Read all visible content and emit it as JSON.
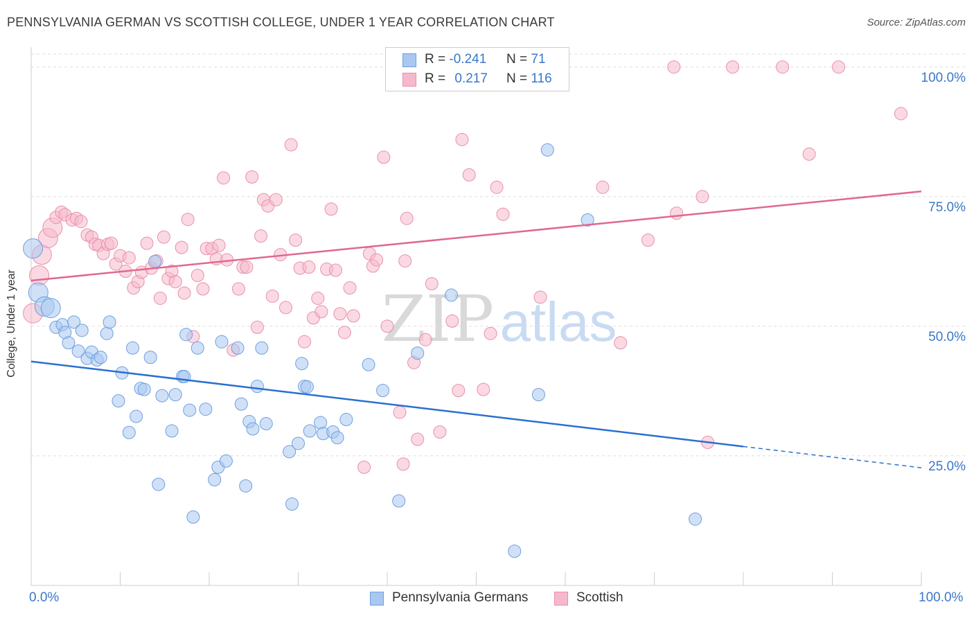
{
  "title": "PENNSYLVANIA GERMAN VS SCOTTISH COLLEGE, UNDER 1 YEAR CORRELATION CHART",
  "source": "Source: ZipAtlas.com",
  "watermark": {
    "zip": "ZIP",
    "atlas": "atlas"
  },
  "legend_top": {
    "rows": [
      {
        "r_label": "R =",
        "r_value": "-0.241",
        "n_label": "N =",
        "n_value": "71"
      },
      {
        "r_label": "R =",
        "r_value": "0.217",
        "n_label": "N =",
        "n_value": "116"
      }
    ]
  },
  "legend_bottom": {
    "items": [
      "Pennsylvania Germans",
      "Scottish"
    ]
  },
  "colors": {
    "blue_fill": "#a9c8f0",
    "blue_stroke": "#6d9fe0",
    "blue_line": "#2a6fd1",
    "pink_fill": "#f5b9cb",
    "pink_stroke": "#ea8fac",
    "pink_line": "#e0688f",
    "tick_label": "#3a77c9",
    "grid": "#dddddd"
  },
  "chart_data": {
    "type": "scatter",
    "title": "PENNSYLVANIA GERMAN VS SCOTTISH COLLEGE, UNDER 1 YEAR CORRELATION CHART",
    "xlabel": "",
    "ylabel": "College, Under 1 year",
    "xlim": [
      0,
      100
    ],
    "ylim": [
      0,
      105
    ],
    "x_tick_labels": [
      "0.0%",
      "100.0%"
    ],
    "y_tick_labels": [
      "25.0%",
      "50.0%",
      "75.0%",
      "100.0%"
    ],
    "y_ticks": [
      25,
      50,
      75,
      100
    ],
    "grid": true,
    "legend_position": "top-center",
    "series": [
      {
        "name": "Pennsylvania Germans",
        "color": "#a9c8f0",
        "r": -0.241,
        "n": 71,
        "trend": {
          "x0": 0,
          "y0": 43.2,
          "x1": 80,
          "y1": 26.8,
          "dashed_to_x": 100,
          "dashed_to_y": 22.7
        },
        "points": [
          [
            0.2,
            65.0
          ],
          [
            0.8,
            56.5
          ],
          [
            1.5,
            53.8
          ],
          [
            2.2,
            53.5
          ],
          [
            2.8,
            49.8
          ],
          [
            3.5,
            50.3
          ],
          [
            3.8,
            48.8
          ],
          [
            4.2,
            46.8
          ],
          [
            4.8,
            50.8
          ],
          [
            5.3,
            45.2
          ],
          [
            5.7,
            49.2
          ],
          [
            6.3,
            43.8
          ],
          [
            6.8,
            45.0
          ],
          [
            7.4,
            43.5
          ],
          [
            7.8,
            44.0
          ],
          [
            8.5,
            48.6
          ],
          [
            8.8,
            50.8
          ],
          [
            9.8,
            35.6
          ],
          [
            10.2,
            41.0
          ],
          [
            11.0,
            29.5
          ],
          [
            11.4,
            45.8
          ],
          [
            11.8,
            32.6
          ],
          [
            12.3,
            38.0
          ],
          [
            12.7,
            37.8
          ],
          [
            13.4,
            44.0
          ],
          [
            13.9,
            62.5
          ],
          [
            14.3,
            19.5
          ],
          [
            14.7,
            36.6
          ],
          [
            15.8,
            29.8
          ],
          [
            16.2,
            36.8
          ],
          [
            17.0,
            40.3
          ],
          [
            17.4,
            48.4
          ],
          [
            17.8,
            33.8
          ],
          [
            18.2,
            13.2
          ],
          [
            18.7,
            45.8
          ],
          [
            19.6,
            34.0
          ],
          [
            20.6,
            20.4
          ],
          [
            21.0,
            22.8
          ],
          [
            21.4,
            47.0
          ],
          [
            21.9,
            24.0
          ],
          [
            23.2,
            45.8
          ],
          [
            23.6,
            35.0
          ],
          [
            24.1,
            19.2
          ],
          [
            24.5,
            31.6
          ],
          [
            24.9,
            30.2
          ],
          [
            25.4,
            38.4
          ],
          [
            25.9,
            45.8
          ],
          [
            26.4,
            31.2
          ],
          [
            29.0,
            25.8
          ],
          [
            29.3,
            15.7
          ],
          [
            30.0,
            27.4
          ],
          [
            30.4,
            42.8
          ],
          [
            30.7,
            38.4
          ],
          [
            31.3,
            29.8
          ],
          [
            32.5,
            31.4
          ],
          [
            32.8,
            29.3
          ],
          [
            33.9,
            29.6
          ],
          [
            34.4,
            28.5
          ],
          [
            35.4,
            32.0
          ],
          [
            37.9,
            42.6
          ],
          [
            39.5,
            37.6
          ],
          [
            41.3,
            16.3
          ],
          [
            43.4,
            44.8
          ],
          [
            47.2,
            56.0
          ],
          [
            54.3,
            6.6
          ],
          [
            57.0,
            36.8
          ],
          [
            58.0,
            84.0
          ],
          [
            62.5,
            70.5
          ],
          [
            74.6,
            12.8
          ],
          [
            17.2,
            40.3
          ],
          [
            31.0,
            38.3
          ]
        ]
      },
      {
        "name": "Scottish",
        "color": "#f5b9cb",
        "r": 0.217,
        "n": 116,
        "trend": {
          "x0": 0,
          "y0": 58.8,
          "x1": 100,
          "y1": 76.0
        },
        "points": [
          [
            0.2,
            52.5
          ],
          [
            0.9,
            59.8
          ],
          [
            1.2,
            63.8
          ],
          [
            1.9,
            67.0
          ],
          [
            2.4,
            69.0
          ],
          [
            2.8,
            71.0
          ],
          [
            3.4,
            72.0
          ],
          [
            3.8,
            71.5
          ],
          [
            4.6,
            70.5
          ],
          [
            5.1,
            70.8
          ],
          [
            5.6,
            70.2
          ],
          [
            6.3,
            67.6
          ],
          [
            6.8,
            67.2
          ],
          [
            7.2,
            65.8
          ],
          [
            7.6,
            65.6
          ],
          [
            8.1,
            64.0
          ],
          [
            8.6,
            65.8
          ],
          [
            9.0,
            66.0
          ],
          [
            9.5,
            62.0
          ],
          [
            10.0,
            63.6
          ],
          [
            10.6,
            60.6
          ],
          [
            11.0,
            63.2
          ],
          [
            11.5,
            57.4
          ],
          [
            12.0,
            58.6
          ],
          [
            12.4,
            60.4
          ],
          [
            13.0,
            66.0
          ],
          [
            13.5,
            61.2
          ],
          [
            14.1,
            62.6
          ],
          [
            14.5,
            55.4
          ],
          [
            14.9,
            67.2
          ],
          [
            15.4,
            59.2
          ],
          [
            15.8,
            60.6
          ],
          [
            16.2,
            58.6
          ],
          [
            16.9,
            65.2
          ],
          [
            17.2,
            56.4
          ],
          [
            17.6,
            70.6
          ],
          [
            18.2,
            48.0
          ],
          [
            18.7,
            59.8
          ],
          [
            19.3,
            57.2
          ],
          [
            19.7,
            65.0
          ],
          [
            20.3,
            65.0
          ],
          [
            20.8,
            63.0
          ],
          [
            21.1,
            65.6
          ],
          [
            21.6,
            78.6
          ],
          [
            22.0,
            62.8
          ],
          [
            22.7,
            45.4
          ],
          [
            23.3,
            57.2
          ],
          [
            23.8,
            61.4
          ],
          [
            24.2,
            61.4
          ],
          [
            24.8,
            78.8
          ],
          [
            25.4,
            49.8
          ],
          [
            25.8,
            67.4
          ],
          [
            26.1,
            74.4
          ],
          [
            26.6,
            73.2
          ],
          [
            27.1,
            55.8
          ],
          [
            27.5,
            74.4
          ],
          [
            28.0,
            63.8
          ],
          [
            28.6,
            53.6
          ],
          [
            29.2,
            85.0
          ],
          [
            29.7,
            66.6
          ],
          [
            30.2,
            61.2
          ],
          [
            30.7,
            47.0
          ],
          [
            31.2,
            61.4
          ],
          [
            31.7,
            51.6
          ],
          [
            32.2,
            55.4
          ],
          [
            32.6,
            52.8
          ],
          [
            33.2,
            61.0
          ],
          [
            33.7,
            72.6
          ],
          [
            34.2,
            60.8
          ],
          [
            34.7,
            52.4
          ],
          [
            35.2,
            48.8
          ],
          [
            35.8,
            57.4
          ],
          [
            36.2,
            52.0
          ],
          [
            37.4,
            22.8
          ],
          [
            38.0,
            64.0
          ],
          [
            38.4,
            61.6
          ],
          [
            38.8,
            62.8
          ],
          [
            39.6,
            82.6
          ],
          [
            40.0,
            50.0
          ],
          [
            40.8,
            100.0
          ],
          [
            41.4,
            33.4
          ],
          [
            41.8,
            23.4
          ],
          [
            42.0,
            62.6
          ],
          [
            42.2,
            70.8
          ],
          [
            43.0,
            43.0
          ],
          [
            43.4,
            28.2
          ],
          [
            44.3,
            47.4
          ],
          [
            45.0,
            58.2
          ],
          [
            45.9,
            29.6
          ],
          [
            47.3,
            51.0
          ],
          [
            48.0,
            37.6
          ],
          [
            48.4,
            86.0
          ],
          [
            49.2,
            79.2
          ],
          [
            50.8,
            37.8
          ],
          [
            51.6,
            48.6
          ],
          [
            52.3,
            76.8
          ],
          [
            53.0,
            71.6
          ],
          [
            55.0,
            100.0
          ],
          [
            57.2,
            55.6
          ],
          [
            57.8,
            100.0
          ],
          [
            59.6,
            100.0
          ],
          [
            64.2,
            76.8
          ],
          [
            66.2,
            46.8
          ],
          [
            69.3,
            66.6
          ],
          [
            72.2,
            100.0
          ],
          [
            72.5,
            71.8
          ],
          [
            75.4,
            75.0
          ],
          [
            76.0,
            27.6
          ],
          [
            78.8,
            100.0
          ],
          [
            84.4,
            100.0
          ],
          [
            87.4,
            83.2
          ],
          [
            90.7,
            100.0
          ],
          [
            97.7,
            91.0
          ],
          [
            56.0,
            100.0
          ],
          [
            45.2,
            100.0
          ],
          [
            41.5,
            100.0
          ]
        ]
      }
    ]
  }
}
